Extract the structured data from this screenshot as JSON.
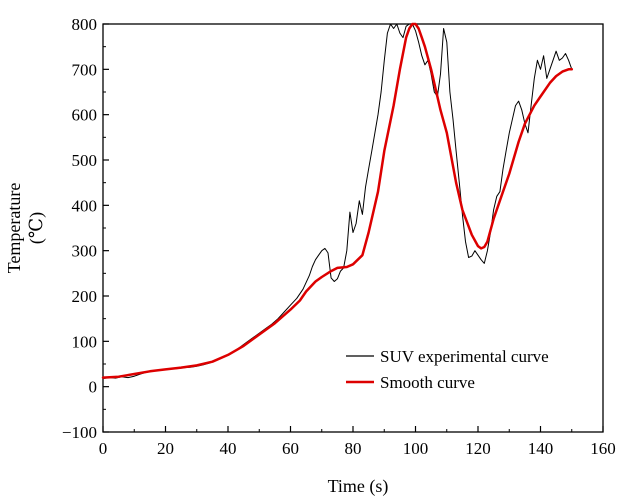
{
  "chart_data": {
    "type": "line",
    "title": "",
    "xlabel": "Time (s)",
    "ylabel_line1": "Temperature",
    "ylabel_line2": "(℃)",
    "xlim": [
      0,
      160
    ],
    "ylim": [
      -100,
      800
    ],
    "xticks": [
      0,
      20,
      40,
      60,
      80,
      100,
      120,
      140,
      160
    ],
    "yticks": [
      -100,
      0,
      100,
      200,
      300,
      400,
      500,
      600,
      700,
      800
    ],
    "grid": false,
    "legend_position": "bottom-right",
    "series": [
      {
        "name": "SUV experimental curve",
        "color": "#000000",
        "x": [
          0,
          2,
          4,
          6,
          8,
          10,
          12,
          14,
          16,
          18,
          20,
          22,
          24,
          26,
          28,
          30,
          32,
          34,
          36,
          38,
          40,
          42,
          44,
          46,
          48,
          50,
          52,
          54,
          56,
          58,
          60,
          62,
          64,
          66,
          67,
          68,
          69,
          70,
          71,
          72,
          73,
          74,
          75,
          76,
          77,
          78,
          79,
          80,
          81,
          82,
          83,
          84,
          85,
          86,
          87,
          88,
          89,
          90,
          91,
          92,
          93,
          94,
          95,
          96,
          97,
          98,
          99,
          100,
          101,
          102,
          103,
          104,
          105,
          106,
          107,
          108,
          109,
          110,
          111,
          112,
          113,
          114,
          115,
          116,
          117,
          118,
          119,
          120,
          121,
          122,
          123,
          124,
          125,
          126,
          127,
          128,
          129,
          130,
          131,
          132,
          133,
          134,
          135,
          136,
          137,
          138,
          139,
          140,
          141,
          142,
          143,
          144,
          145,
          146,
          147,
          148,
          149,
          150
        ],
        "y": [
          18,
          20,
          19,
          22,
          20,
          23,
          28,
          32,
          34,
          36,
          38,
          39,
          40,
          42,
          43,
          45,
          48,
          52,
          57,
          63,
          70,
          78,
          88,
          98,
          108,
          118,
          128,
          138,
          150,
          165,
          180,
          195,
          215,
          245,
          265,
          280,
          290,
          300,
          305,
          295,
          240,
          232,
          238,
          255,
          262,
          300,
          385,
          340,
          360,
          410,
          380,
          440,
          480,
          520,
          560,
          600,
          650,
          720,
          780,
          800,
          790,
          800,
          780,
          770,
          795,
          800,
          800,
          785,
          760,
          730,
          710,
          720,
          690,
          650,
          640,
          690,
          790,
          760,
          650,
          590,
          520,
          450,
          380,
          320,
          285,
          288,
          300,
          290,
          280,
          272,
          300,
          340,
          390,
          420,
          430,
          480,
          520,
          560,
          590,
          620,
          630,
          610,
          580,
          560,
          620,
          680,
          720,
          700,
          730,
          680,
          700,
          720,
          740,
          720,
          725,
          735,
          720,
          700
        ]
      },
      {
        "name": "Smooth curve",
        "color": "#dd0000",
        "x": [
          0,
          5,
          10,
          15,
          20,
          25,
          30,
          35,
          40,
          45,
          50,
          55,
          60,
          63,
          65,
          68,
          70,
          73,
          75,
          78,
          80,
          83,
          85,
          88,
          90,
          93,
          95,
          97,
          98,
          99,
          100,
          101,
          102,
          103,
          105,
          108,
          110,
          113,
          115,
          118,
          120,
          121,
          122,
          123,
          125,
          128,
          130,
          133,
          135,
          138,
          140,
          143,
          145,
          147,
          149,
          150
        ],
        "y": [
          20,
          22,
          28,
          34,
          38,
          42,
          47,
          55,
          70,
          90,
          115,
          140,
          170,
          190,
          210,
          232,
          242,
          255,
          262,
          264,
          270,
          290,
          340,
          430,
          520,
          620,
          700,
          770,
          790,
          800,
          800,
          790,
          770,
          750,
          700,
          610,
          560,
          450,
          390,
          335,
          310,
          305,
          308,
          320,
          370,
          430,
          470,
          540,
          580,
          620,
          640,
          670,
          685,
          695,
          700,
          700
        ]
      }
    ]
  }
}
